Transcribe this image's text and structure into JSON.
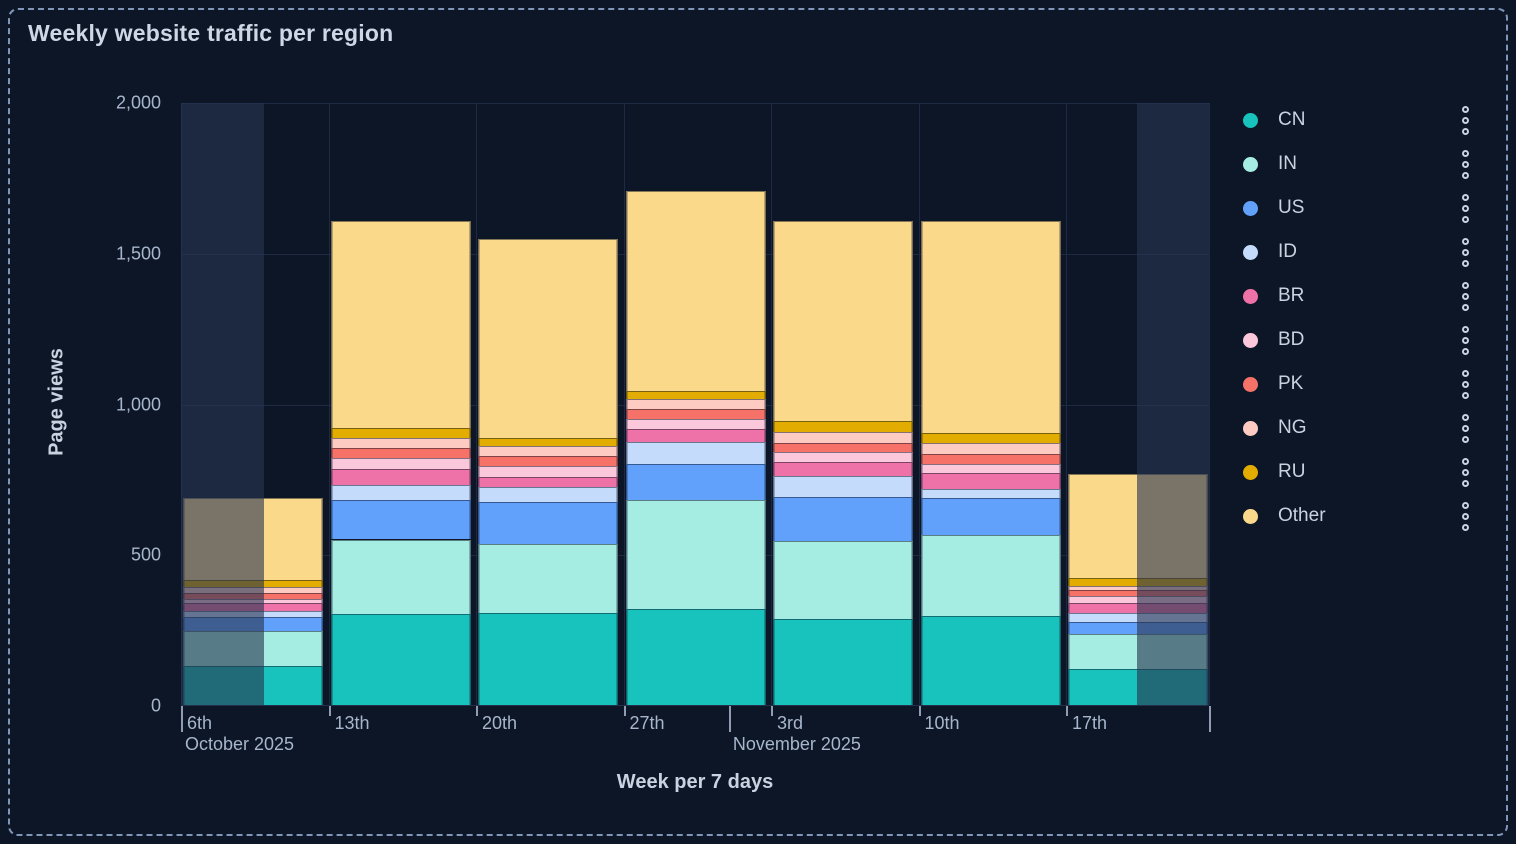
{
  "panel": {
    "title": "Weekly website traffic per region"
  },
  "chart_data": {
    "type": "bar",
    "stacked": true,
    "title": "Weekly website traffic per region",
    "xlabel": "Week per 7 days",
    "ylabel": "Page views",
    "ylim": [
      0,
      2000
    ],
    "yticks": [
      0,
      500,
      1000,
      1500,
      2000
    ],
    "ytick_labels": [
      "0",
      "500",
      "1,000",
      "1,500",
      "2,000"
    ],
    "categories": [
      "6th",
      "13th",
      "20th",
      "27th",
      "3rd",
      "10th",
      "17th"
    ],
    "month_labels": [
      {
        "text": "October 2025",
        "anchor": "first-tick"
      },
      {
        "text": "November 2025",
        "anchor": "month-boundary"
      }
    ],
    "grid": true,
    "legend_position": "right",
    "series": [
      {
        "name": "CN",
        "color": "#17c3bc",
        "values": [
          130,
          303,
          305,
          318,
          285,
          296,
          119
        ]
      },
      {
        "name": "IN",
        "color": "#a5ece2",
        "values": [
          117,
          246,
          228,
          361,
          259,
          267,
          116
        ]
      },
      {
        "name": "US",
        "color": "#61a1fc",
        "values": [
          44,
          132,
          140,
          122,
          147,
          122,
          41
        ]
      },
      {
        "name": "ID",
        "color": "#c4dbfc",
        "values": [
          22,
          50,
          50,
          70,
          70,
          31,
          29
        ]
      },
      {
        "name": "BR",
        "color": "#ee72a8",
        "values": [
          25,
          53,
          34,
          44,
          44,
          55,
          33
        ]
      },
      {
        "name": "BD",
        "color": "#fac7db",
        "values": [
          14,
          35,
          35,
          35,
          33,
          30,
          22
        ]
      },
      {
        "name": "PK",
        "color": "#f67269",
        "values": [
          21,
          33,
          33,
          31,
          31,
          33,
          22
        ]
      },
      {
        "name": "NG",
        "color": "#fdcbc1",
        "values": [
          17,
          34,
          33,
          33,
          35,
          36,
          13
        ]
      },
      {
        "name": "RU",
        "color": "#e3ac00",
        "values": [
          25,
          34,
          28,
          28,
          39,
          31,
          26
        ]
      },
      {
        "name": "Other",
        "color": "#fbd98b",
        "values": [
          271,
          685,
          660,
          664,
          662,
          705,
          344
        ]
      }
    ],
    "bar_totals": [
      686,
      1605,
      1546,
      1706,
      1605,
      1606,
      765
    ],
    "dim_regions": [
      {
        "bar_index": 0,
        "side": "left",
        "fraction": 0.582
      },
      {
        "bar_index": 6,
        "side": "right",
        "fraction": 0.49
      }
    ],
    "colors": {
      "background": "#0d1626",
      "gridline": "#1e2a44",
      "dim_overlay": "rgba(41,53,80,0.62)",
      "text_primary": "#cdd7e5",
      "text_secondary": "#a7b6cc",
      "panel_border": "#8096b8"
    }
  },
  "legend": {
    "menu_icon": "kebab-menu"
  }
}
